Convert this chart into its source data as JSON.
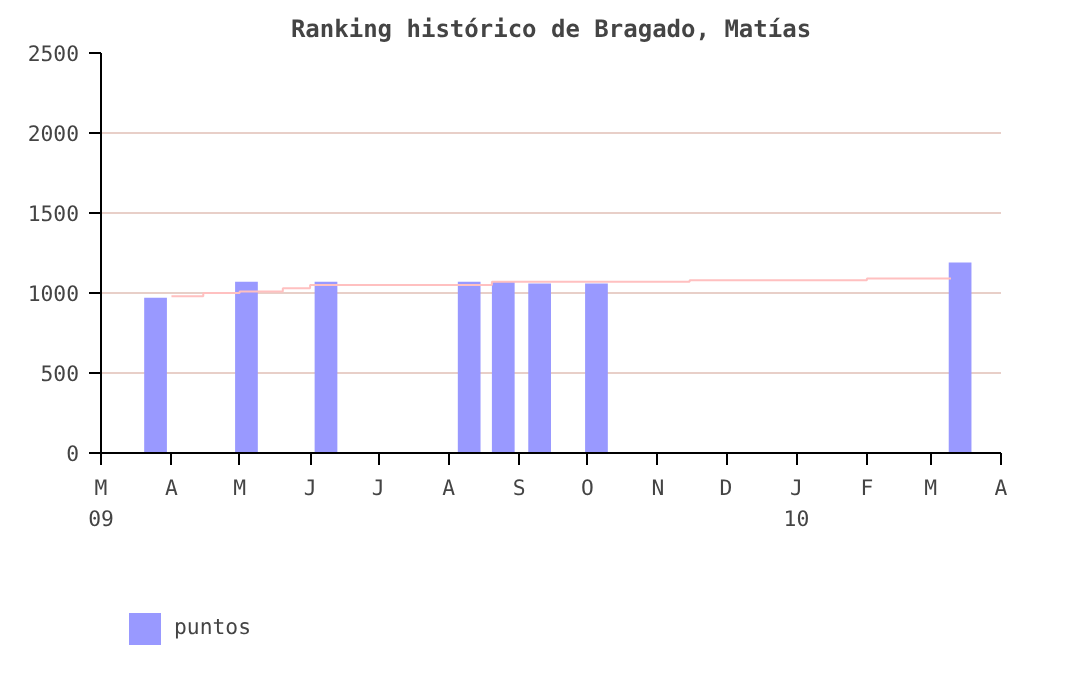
{
  "chart_data": {
    "type": "bar",
    "title": "Ranking histórico de Bragado, Matías",
    "xlim": [
      "2009-03-01",
      "2010-04-01"
    ],
    "xticks": [
      {
        "value": "2009-03-01",
        "label": "M\n09"
      },
      {
        "value": "2009-04-01",
        "label": "A"
      },
      {
        "value": "2009-05-01",
        "label": "M"
      },
      {
        "value": "2009-06-01",
        "label": "J"
      },
      {
        "value": "2009-07-01",
        "label": "J"
      },
      {
        "value": "2009-08-01",
        "label": "A"
      },
      {
        "value": "2009-09-01",
        "label": "S"
      },
      {
        "value": "2009-10-01",
        "label": "O"
      },
      {
        "value": "2009-11-01",
        "label": "N"
      },
      {
        "value": "2009-12-01",
        "label": "D"
      },
      {
        "value": "2010-01-01",
        "label": "J\n10"
      },
      {
        "value": "2010-02-01",
        "label": "F"
      },
      {
        "value": "2010-03-01",
        "label": "M"
      },
      {
        "value": "2010-04-01",
        "label": "A"
      }
    ],
    "ylim": [
      0,
      2500
    ],
    "yticks": [
      0,
      500,
      1000,
      1500,
      2000,
      2500
    ],
    "grid": "y",
    "legend": "bottom left",
    "series": [
      {
        "name": "puntos",
        "color": "#9999ff",
        "x": [
          "2009-03-25",
          "2009-05-04",
          "2009-06-08",
          "2009-08-10",
          "2009-08-20",
          "2009-08-25",
          "2009-09-10",
          "2009-10-05",
          "2010-03-14"
        ],
        "values": [
          970,
          1070,
          1070,
          1070,
          null,
          1070,
          1060,
          1060,
          1190
        ]
      },
      {
        "type": "step",
        "color": "#ffc0c0",
        "x": [
          "2009-04-01",
          "2009-04-15",
          "2009-05-01",
          "2009-05-20",
          "2009-06-01",
          "2009-08-20",
          "2009-11-15",
          "2010-02-01",
          "2010-03-10"
        ],
        "values": [
          980,
          1000,
          1010,
          1030,
          1050,
          1070,
          1080,
          1090,
          1090
        ]
      }
    ]
  }
}
